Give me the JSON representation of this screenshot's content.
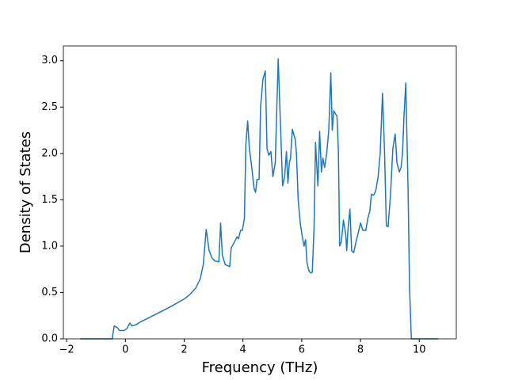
{
  "chart_data": {
    "type": "line",
    "x_label": "Frequency (THz)",
    "y_label": "Density of States",
    "xlim": [
      -2.11,
      11.26
    ],
    "ylim": [
      0,
      3.16
    ],
    "xticks": [
      {
        "value": -2,
        "label": "−2"
      },
      0,
      2,
      4,
      6,
      8,
      10
    ],
    "yticks": [
      {
        "value": 0,
        "label": "0.0"
      },
      0.5,
      {
        "value": 1,
        "label": "1.0"
      },
      1.5,
      {
        "value": 2,
        "label": "2.0"
      },
      2.5,
      {
        "value": 3,
        "label": "3.0"
      }
    ],
    "series": [
      {
        "color": "#1f77b4",
        "x": [
          -1.54,
          -0.45,
          -0.38,
          -0.27,
          -0.2,
          -0.05,
          0.05,
          0.15,
          0.22,
          0.35,
          0.5,
          1.0,
          1.5,
          2.0,
          2.2,
          2.4,
          2.55,
          2.65,
          2.75,
          2.85,
          2.95,
          3.05,
          3.18,
          3.24,
          3.3,
          3.4,
          3.55,
          3.6,
          3.72,
          3.8,
          3.85,
          3.92,
          3.98,
          4.05,
          4.1,
          4.16,
          4.22,
          4.3,
          4.38,
          4.43,
          4.48,
          4.55,
          4.6,
          4.68,
          4.76,
          4.82,
          4.88,
          4.95,
          5.02,
          5.1,
          5.2,
          5.3,
          5.35,
          5.42,
          5.48,
          5.53,
          5.58,
          5.62,
          5.68,
          5.78,
          5.82,
          5.88,
          5.95,
          6.02,
          6.08,
          6.13,
          6.18,
          6.25,
          6.31,
          6.36,
          6.42,
          6.47,
          6.55,
          6.61,
          6.67,
          6.72,
          6.78,
          6.85,
          6.92,
          6.99,
          7.04,
          7.09,
          7.2,
          7.25,
          7.29,
          7.35,
          7.42,
          7.5,
          7.53,
          7.58,
          7.64,
          7.7,
          7.77,
          7.85,
          7.93,
          8.0,
          8.08,
          8.18,
          8.25,
          8.32,
          8.37,
          8.45,
          8.52,
          8.6,
          8.67,
          8.75,
          8.82,
          8.88,
          8.94,
          9.02,
          9.1,
          9.18,
          9.24,
          9.32,
          9.38,
          9.43,
          9.48,
          9.54,
          9.62,
          9.67,
          9.73,
          10.65
        ],
        "values": [
          0,
          0,
          0.14,
          0.12,
          0.09,
          0.09,
          0.11,
          0.17,
          0.14,
          0.15,
          0.18,
          0.26,
          0.34,
          0.43,
          0.48,
          0.55,
          0.65,
          0.8,
          1.18,
          0.95,
          0.87,
          0.84,
          0.83,
          1.25,
          0.9,
          0.8,
          0.78,
          0.98,
          1.05,
          1.1,
          1.08,
          1.17,
          1.17,
          1.3,
          2.1,
          2.35,
          2.05,
          1.85,
          1.62,
          1.58,
          1.72,
          1.72,
          2.5,
          2.8,
          2.89,
          2.05,
          1.98,
          2.02,
          1.75,
          1.9,
          3.02,
          2.1,
          1.65,
          1.75,
          2.02,
          1.68,
          1.9,
          1.95,
          2.26,
          2.15,
          2.0,
          1.5,
          1.25,
          1.1,
          1.0,
          1.07,
          0.82,
          0.73,
          0.71,
          0.72,
          1.2,
          2.12,
          1.65,
          2.24,
          1.8,
          1.95,
          1.85,
          2.0,
          2.25,
          2.87,
          2.25,
          2.46,
          2.4,
          2.0,
          1.0,
          1.05,
          1.28,
          1.12,
          0.95,
          1.2,
          1.4,
          0.95,
          0.93,
          1.05,
          1.15,
          1.25,
          1.17,
          1.17,
          1.3,
          1.38,
          1.56,
          1.55,
          1.6,
          1.75,
          2.0,
          2.65,
          2.0,
          1.22,
          1.21,
          1.55,
          2.05,
          2.21,
          1.9,
          1.8,
          1.85,
          2.0,
          2.4,
          2.76,
          1.6,
          0.55,
          0,
          0
        ]
      }
    ]
  }
}
